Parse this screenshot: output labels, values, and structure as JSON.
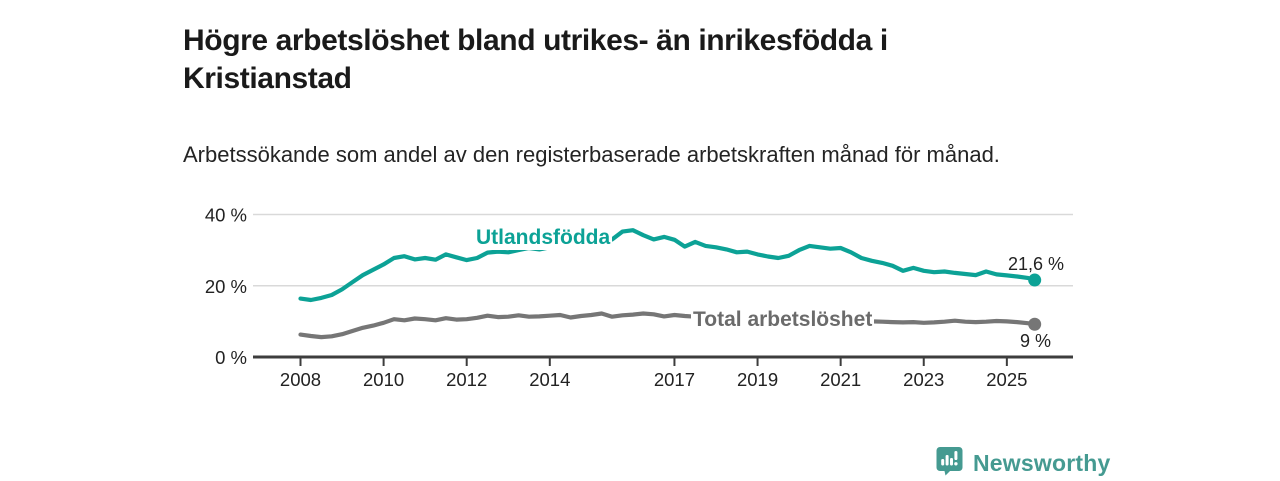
{
  "header": {
    "title": "Högre arbetslöshet bland utrikes- än inrikesfödda i Kristianstad",
    "subtitle": "Arbetssökande som andel av den registerbaserade arbetskraften månad för månad."
  },
  "chart_data": {
    "type": "line",
    "title": "Högre arbetslöshet bland utrikes- än inrikesfödda i Kristianstad",
    "subtitle": "Arbetssökande som andel av den registerbaserade arbetskraften månad för månad.",
    "xlabel": "",
    "ylabel": "",
    "xlim": [
      2008,
      2025.9
    ],
    "ylim": [
      0,
      42
    ],
    "grid": "horizontal-light",
    "legend_position": "inline-labels-on-lines",
    "yticks": [
      {
        "value": 0,
        "label": "0 %"
      },
      {
        "value": 20,
        "label": "20 %"
      },
      {
        "value": 40,
        "label": "40 %"
      }
    ],
    "xticks": [
      {
        "value": 2008,
        "label": "2008"
      },
      {
        "value": 2010,
        "label": "2010"
      },
      {
        "value": 2012,
        "label": "2012"
      },
      {
        "value": 2014,
        "label": "2014"
      },
      {
        "value": 2017,
        "label": "2017"
      },
      {
        "value": 2019,
        "label": "2019"
      },
      {
        "value": 2021,
        "label": "2021"
      },
      {
        "value": 2023,
        "label": "2023"
      },
      {
        "value": 2025,
        "label": "2025"
      }
    ],
    "x": [
      2008.0,
      2008.25,
      2008.5,
      2008.75,
      2009.0,
      2009.25,
      2009.5,
      2009.75,
      2010.0,
      2010.25,
      2010.5,
      2010.75,
      2011.0,
      2011.25,
      2011.5,
      2011.75,
      2012.0,
      2012.25,
      2012.5,
      2012.75,
      2013.0,
      2013.25,
      2013.5,
      2013.75,
      2014.0,
      2014.25,
      2014.5,
      2014.75,
      2015.0,
      2015.25,
      2015.5,
      2015.75,
      2016.0,
      2016.25,
      2016.5,
      2016.75,
      2017.0,
      2017.25,
      2017.5,
      2017.75,
      2018.0,
      2018.25,
      2018.5,
      2018.75,
      2019.0,
      2019.25,
      2019.5,
      2019.75,
      2020.0,
      2020.25,
      2020.5,
      2020.75,
      2021.0,
      2021.25,
      2021.5,
      2021.75,
      2022.0,
      2022.25,
      2022.5,
      2022.75,
      2023.0,
      2023.25,
      2023.5,
      2023.75,
      2024.0,
      2024.25,
      2024.5,
      2024.75,
      2025.0,
      2025.25,
      2025.5,
      2025.67
    ],
    "series": [
      {
        "name": "Utlandsfödda",
        "color": "#0ca296",
        "end_label": "21,6 %",
        "end_value": 21.6,
        "values": [
          16.4,
          16.0,
          16.6,
          17.4,
          19.0,
          21.0,
          23.0,
          24.5,
          26.0,
          27.8,
          28.3,
          27.4,
          27.8,
          27.3,
          28.8,
          28.0,
          27.2,
          27.8,
          29.3,
          29.6,
          29.4,
          30.0,
          30.6,
          30.2,
          30.8,
          31.4,
          31.0,
          31.6,
          32.2,
          32.0,
          33.0,
          35.2,
          35.6,
          34.2,
          33.0,
          33.7,
          32.9,
          31.0,
          32.3,
          31.2,
          30.8,
          30.2,
          29.4,
          29.6,
          28.8,
          28.2,
          27.8,
          28.4,
          30.0,
          31.2,
          30.8,
          30.4,
          30.6,
          29.4,
          27.8,
          27.0,
          26.4,
          25.6,
          24.2,
          25.0,
          24.2,
          23.8,
          24.0,
          23.6,
          23.3,
          23.0,
          24.0,
          23.2,
          22.9,
          22.6,
          22.2,
          21.6
        ]
      },
      {
        "name": "Total arbetslöshet",
        "color": "#767676",
        "end_label": "9 %",
        "end_value": 9.2,
        "values": [
          6.3,
          5.9,
          5.6,
          5.8,
          6.4,
          7.3,
          8.2,
          8.8,
          9.6,
          10.6,
          10.3,
          10.8,
          10.6,
          10.3,
          10.9,
          10.5,
          10.6,
          11.0,
          11.6,
          11.2,
          11.3,
          11.7,
          11.3,
          11.4,
          11.6,
          11.8,
          11.1,
          11.5,
          11.8,
          12.2,
          11.3,
          11.7,
          11.9,
          12.2,
          12.0,
          11.4,
          11.8,
          11.5,
          11.3,
          11.1,
          10.9,
          10.7,
          10.5,
          10.4,
          10.3,
          10.2,
          10.1,
          10.3,
          10.8,
          11.4,
          11.2,
          11.0,
          10.8,
          10.5,
          10.2,
          10.0,
          9.9,
          9.8,
          9.7,
          9.8,
          9.6,
          9.7,
          9.9,
          10.2,
          9.9,
          9.8,
          9.9,
          10.1,
          10.0,
          9.8,
          9.5,
          9.2
        ]
      }
    ],
    "colors": {
      "gridline": "#d9d9d9",
      "axis": "#3d3d3d",
      "tick_text": "#222222"
    }
  },
  "footer": {
    "brand": "Newsworthy",
    "brand_color": "#459a91",
    "logo_icon": "speech-bubble-bar-chart-icon"
  }
}
